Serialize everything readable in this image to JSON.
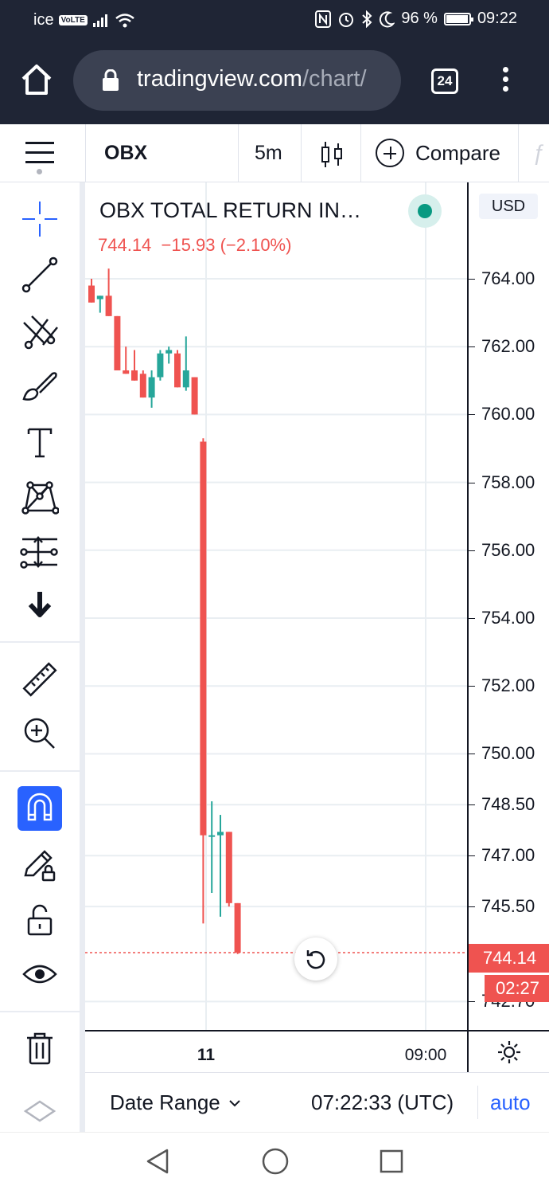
{
  "status_bar": {
    "carrier": "ice",
    "volte": "VoLTE",
    "battery": "96 %",
    "battery_level": 0.96,
    "time": "09:22"
  },
  "browser": {
    "url_host": "tradingview.com",
    "url_path": "/chart/",
    "tab_count": "24"
  },
  "toolbar": {
    "symbol": "OBX",
    "interval": "5m",
    "compare_label": "Compare"
  },
  "legend": {
    "title": "OBX TOTAL RETURN IN…",
    "last": "744.14",
    "change": "−15.93",
    "change_pct": "(−2.10%)"
  },
  "price_scale": {
    "currency": "USD",
    "last_price_label": "744.14",
    "countdown": "02:27"
  },
  "time_scale": {
    "ticks": [
      "11",
      "09:00"
    ]
  },
  "bottom_bar": {
    "date_range_label": "Date Range",
    "clock": "07:22:33 (UTC)",
    "scale_mode": "auto"
  },
  "left_tools": [
    "crosshair-icon",
    "trend-line-icon",
    "fib-icon",
    "brush-icon",
    "text-icon",
    "pattern-icon",
    "prediction-icon",
    "arrow-down-icon",
    "ruler-icon",
    "zoom-in-icon",
    "magnet-icon",
    "lock-drawing-icon",
    "unlock-icon",
    "eye-icon",
    "trash-icon",
    "layers-icon"
  ],
  "colors": {
    "up": "#26a69a",
    "down": "#ef5350",
    "accent": "#2962ff",
    "chrome": "#1f2535"
  },
  "chart_data": {
    "type": "candlestick",
    "title": "OBX TOTAL RETURN IN…",
    "y_ticks": [
      "764.00",
      "762.00",
      "760.00",
      "758.00",
      "756.00",
      "754.00",
      "752.00",
      "750.00",
      "748.50",
      "747.00",
      "745.50",
      "742.70"
    ],
    "x_ticks": [
      "11",
      "09:00"
    ],
    "last_price": 744.14,
    "candles": [
      {
        "o": 763.8,
        "h": 764.0,
        "l": 763.3,
        "c": 763.3
      },
      {
        "o": 763.4,
        "h": 763.5,
        "l": 763.0,
        "c": 763.5
      },
      {
        "o": 763.5,
        "h": 764.3,
        "l": 762.9,
        "c": 762.9
      },
      {
        "o": 762.9,
        "h": 762.9,
        "l": 761.3,
        "c": 761.3
      },
      {
        "o": 761.3,
        "h": 762.0,
        "l": 761.2,
        "c": 761.2
      },
      {
        "o": 761.3,
        "h": 761.9,
        "l": 761.0,
        "c": 761.0
      },
      {
        "o": 761.2,
        "h": 761.3,
        "l": 760.5,
        "c": 760.5
      },
      {
        "o": 760.5,
        "h": 761.3,
        "l": 760.2,
        "c": 761.1
      },
      {
        "o": 761.1,
        "h": 761.9,
        "l": 761.0,
        "c": 761.8
      },
      {
        "o": 761.8,
        "h": 762.0,
        "l": 761.5,
        "c": 761.9
      },
      {
        "o": 761.8,
        "h": 761.9,
        "l": 760.8,
        "c": 760.8
      },
      {
        "o": 760.8,
        "h": 762.3,
        "l": 760.7,
        "c": 761.3
      },
      {
        "o": 761.1,
        "h": 761.1,
        "l": 760.0,
        "c": 760.0
      },
      {
        "o": 759.2,
        "h": 759.3,
        "l": 745.0,
        "c": 747.6
      },
      {
        "o": 747.6,
        "h": 748.6,
        "l": 745.9,
        "c": 747.6
      },
      {
        "o": 747.6,
        "h": 748.2,
        "l": 745.2,
        "c": 747.7
      },
      {
        "o": 747.7,
        "h": 747.7,
        "l": 745.5,
        "c": 745.6
      },
      {
        "o": 745.6,
        "h": 745.6,
        "l": 744.1,
        "c": 744.14
      }
    ]
  }
}
